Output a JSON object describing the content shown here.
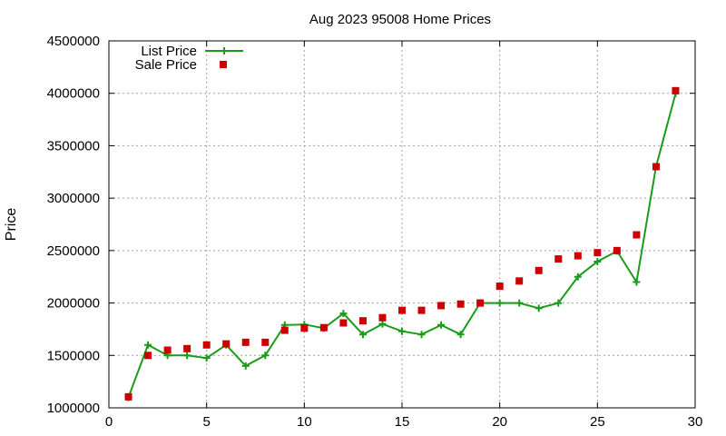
{
  "chart_data": {
    "type": "line",
    "title": "Aug 2023 95008 Home Prices",
    "xlabel": "",
    "ylabel": "Price",
    "xlim": [
      0,
      30
    ],
    "ylim": [
      1000000,
      4500000
    ],
    "x_ticks": [
      0,
      5,
      10,
      15,
      20,
      25,
      30
    ],
    "y_ticks": [
      1000000,
      1500000,
      2000000,
      2500000,
      3000000,
      3500000,
      4000000,
      4500000
    ],
    "grid": true,
    "legend_position": "top-left",
    "series": [
      {
        "name": "List Price",
        "style": "line+cross",
        "color": "#1a9c1a",
        "points": [
          [
            1,
            1100000
          ],
          [
            2,
            1600000
          ],
          [
            3,
            1500000
          ],
          [
            4,
            1500000
          ],
          [
            5,
            1475000
          ],
          [
            6,
            1600000
          ],
          [
            7,
            1400000
          ],
          [
            8,
            1500000
          ],
          [
            9,
            1790000
          ],
          [
            10,
            1795000
          ],
          [
            11,
            1760000
          ],
          [
            12,
            1900000
          ],
          [
            13,
            1700000
          ],
          [
            14,
            1800000
          ],
          [
            15,
            1730000
          ],
          [
            16,
            1700000
          ],
          [
            17,
            1790000
          ],
          [
            18,
            1700000
          ],
          [
            19,
            2000000
          ],
          [
            20,
            2000000
          ],
          [
            21,
            2000000
          ],
          [
            22,
            1950000
          ],
          [
            23,
            2000000
          ],
          [
            24,
            2250000
          ],
          [
            25,
            2395000
          ],
          [
            26,
            2495000
          ],
          [
            27,
            2200000
          ],
          [
            28,
            3300000
          ],
          [
            29,
            4000000
          ]
        ]
      },
      {
        "name": "Sale Price",
        "style": "square",
        "color": "#cc0000",
        "points": [
          [
            1,
            1105000
          ],
          [
            2,
            1500000
          ],
          [
            3,
            1550000
          ],
          [
            4,
            1565000
          ],
          [
            5,
            1600000
          ],
          [
            6,
            1610000
          ],
          [
            7,
            1625000
          ],
          [
            8,
            1625000
          ],
          [
            9,
            1740000
          ],
          [
            10,
            1760000
          ],
          [
            11,
            1765000
          ],
          [
            12,
            1810000
          ],
          [
            13,
            1830000
          ],
          [
            14,
            1860000
          ],
          [
            15,
            1930000
          ],
          [
            16,
            1930000
          ],
          [
            17,
            1975000
          ],
          [
            18,
            1990000
          ],
          [
            19,
            2000000
          ],
          [
            20,
            2160000
          ],
          [
            21,
            2210000
          ],
          [
            22,
            2310000
          ],
          [
            23,
            2420000
          ],
          [
            24,
            2450000
          ],
          [
            25,
            2480000
          ],
          [
            26,
            2500000
          ],
          [
            27,
            2650000
          ],
          [
            28,
            3300000
          ],
          [
            29,
            4025000
          ]
        ]
      }
    ]
  }
}
